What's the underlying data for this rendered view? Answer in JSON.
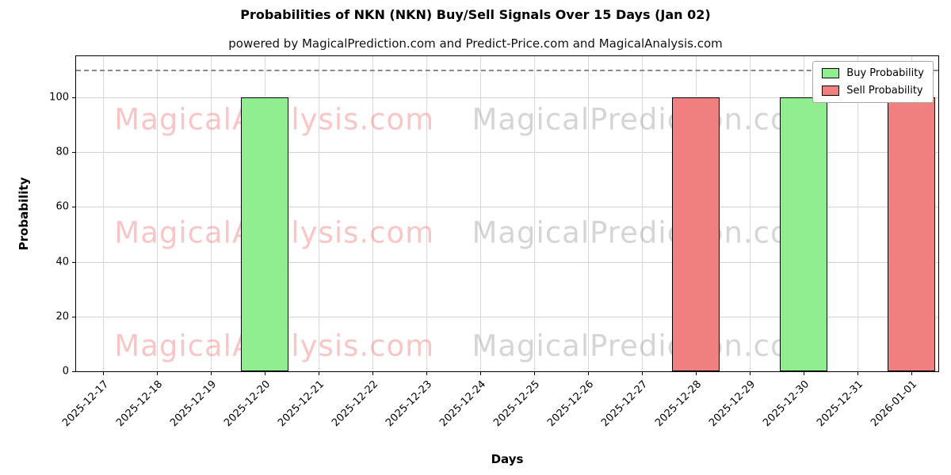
{
  "chart_data": {
    "type": "bar",
    "title": "Probabilities of NKN (NKN) Buy/Sell Signals Over 15 Days (Jan 02)",
    "subtitle": "powered by MagicalPrediction.com and Predict-Price.com and MagicalAnalysis.com",
    "xlabel": "Days",
    "ylabel": "Probability",
    "categories": [
      "2025-12-17",
      "2025-12-18",
      "2025-12-19",
      "2025-12-20",
      "2025-12-21",
      "2025-12-22",
      "2025-12-23",
      "2025-12-24",
      "2025-12-25",
      "2025-12-26",
      "2025-12-27",
      "2025-12-28",
      "2025-12-29",
      "2025-12-30",
      "2025-12-31",
      "2026-01-01"
    ],
    "series": [
      {
        "name": "Buy Probability",
        "color": "#90EE90",
        "values": [
          0,
          0,
          0,
          100,
          0,
          0,
          0,
          0,
          0,
          0,
          0,
          0,
          0,
          100,
          0,
          0
        ]
      },
      {
        "name": "Sell Probability",
        "color": "#F08080",
        "values": [
          0,
          0,
          0,
          0,
          0,
          0,
          0,
          0,
          0,
          0,
          0,
          100,
          0,
          0,
          0,
          100
        ]
      }
    ],
    "ylim": [
      0,
      115
    ],
    "yticks": [
      0,
      20,
      40,
      60,
      80,
      100
    ],
    "dashed_line_y": 110,
    "grid": true,
    "legend_position": "top-right",
    "watermarks": [
      {
        "text": "MagicalAnalysis.com",
        "color": "rgba(240,128,128,0.45)",
        "x_pct": 23,
        "row_pcts": [
          20,
          56,
          92
        ]
      },
      {
        "text": "MagicalPrediction.com",
        "color": "rgba(150,150,150,0.40)",
        "x_pct": 66,
        "row_pcts": [
          20,
          56,
          92
        ]
      }
    ]
  }
}
